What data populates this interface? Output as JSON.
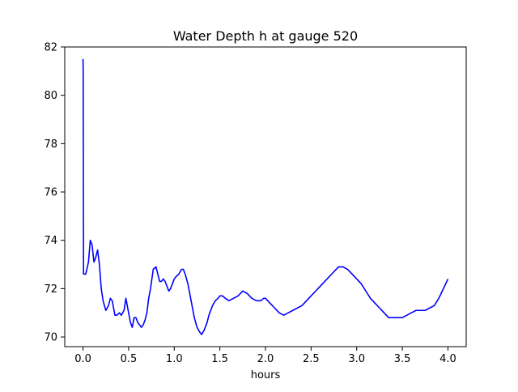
{
  "chart_data": {
    "type": "line",
    "title": "Water Depth h at gauge 520",
    "xlabel": "hours",
    "ylabel": "",
    "xlim": [
      -0.2,
      4.2
    ],
    "ylim": [
      69.6,
      82.0
    ],
    "xticks": [
      0.0,
      0.5,
      1.0,
      1.5,
      2.0,
      2.5,
      3.0,
      3.5,
      4.0
    ],
    "xtick_labels": [
      "0.0",
      "0.5",
      "1.0",
      "1.5",
      "2.0",
      "2.5",
      "3.0",
      "3.5",
      "4.0"
    ],
    "yticks": [
      70,
      72,
      74,
      76,
      78,
      80,
      82
    ],
    "ytick_labels": [
      "70",
      "72",
      "74",
      "76",
      "78",
      "80",
      "82"
    ],
    "grid": false,
    "series": [
      {
        "color": "#0000ff",
        "x": [
          0.0,
          0.002,
          0.004,
          0.006,
          0.01,
          0.03,
          0.06,
          0.08,
          0.1,
          0.12,
          0.14,
          0.16,
          0.18,
          0.2,
          0.22,
          0.25,
          0.28,
          0.3,
          0.32,
          0.35,
          0.37,
          0.4,
          0.42,
          0.45,
          0.47,
          0.5,
          0.52,
          0.54,
          0.56,
          0.58,
          0.6,
          0.62,
          0.64,
          0.66,
          0.68,
          0.7,
          0.72,
          0.74,
          0.77,
          0.8,
          0.82,
          0.84,
          0.86,
          0.88,
          0.9,
          0.92,
          0.94,
          0.96,
          0.98,
          1.0,
          1.02,
          1.05,
          1.08,
          1.1,
          1.12,
          1.15,
          1.18,
          1.2,
          1.22,
          1.25,
          1.28,
          1.3,
          1.33,
          1.36,
          1.38,
          1.4,
          1.42,
          1.45,
          1.48,
          1.5,
          1.53,
          1.56,
          1.6,
          1.65,
          1.7,
          1.75,
          1.8,
          1.85,
          1.9,
          1.95,
          1.98,
          2.0,
          2.05,
          2.1,
          2.15,
          2.2,
          2.25,
          2.3,
          2.35,
          2.4,
          2.45,
          2.5,
          2.55,
          2.6,
          2.65,
          2.7,
          2.75,
          2.8,
          2.85,
          2.9,
          2.95,
          3.0,
          3.05,
          3.1,
          3.15,
          3.2,
          3.25,
          3.3,
          3.35,
          3.4,
          3.45,
          3.5,
          3.55,
          3.6,
          3.65,
          3.7,
          3.75,
          3.8,
          3.85,
          3.9,
          3.95,
          4.0
        ],
        "y": [
          81.5,
          81.1,
          76.0,
          72.6,
          72.6,
          72.6,
          73.1,
          74.0,
          73.8,
          73.1,
          73.3,
          73.6,
          73.0,
          72.0,
          71.5,
          71.1,
          71.3,
          71.6,
          71.5,
          70.9,
          70.9,
          71.0,
          70.9,
          71.1,
          71.6,
          71.0,
          70.6,
          70.4,
          70.8,
          70.8,
          70.6,
          70.5,
          70.4,
          70.5,
          70.7,
          71.0,
          71.6,
          72.0,
          72.8,
          72.9,
          72.6,
          72.3,
          72.3,
          72.4,
          72.3,
          72.1,
          71.9,
          72.0,
          72.2,
          72.4,
          72.5,
          72.6,
          72.8,
          72.8,
          72.6,
          72.2,
          71.6,
          71.2,
          70.8,
          70.4,
          70.2,
          70.1,
          70.3,
          70.6,
          70.9,
          71.1,
          71.3,
          71.5,
          71.6,
          71.7,
          71.7,
          71.6,
          71.5,
          71.6,
          71.7,
          71.9,
          71.8,
          71.6,
          71.5,
          71.5,
          71.6,
          71.6,
          71.4,
          71.2,
          71.0,
          70.9,
          71.0,
          71.1,
          71.2,
          71.3,
          71.5,
          71.7,
          71.9,
          72.1,
          72.3,
          72.5,
          72.7,
          72.9,
          72.9,
          72.8,
          72.6,
          72.4,
          72.2,
          71.9,
          71.6,
          71.4,
          71.2,
          71.0,
          70.8,
          70.8,
          70.8,
          70.8,
          70.9,
          71.0,
          71.1,
          71.1,
          71.1,
          71.2,
          71.3,
          71.6,
          72.0,
          72.4
        ]
      }
    ]
  }
}
